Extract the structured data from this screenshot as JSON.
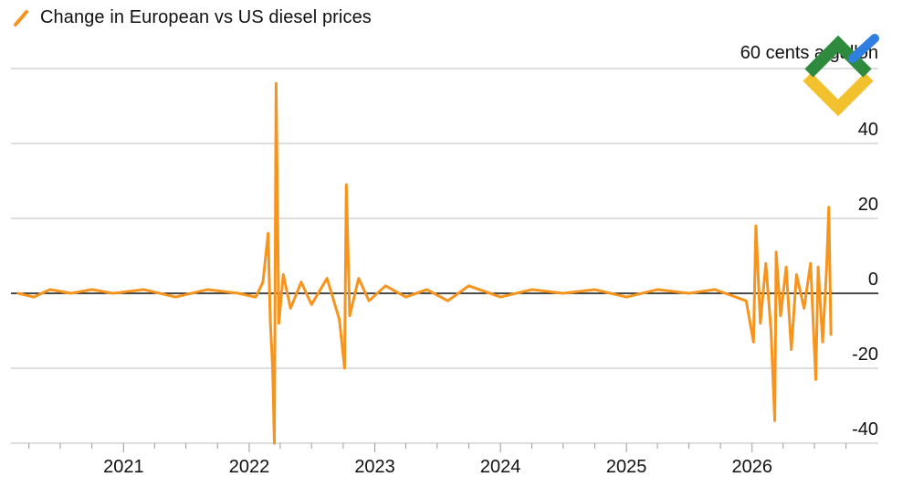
{
  "chart_data": {
    "type": "line",
    "title": "Change in European vs US diesel prices",
    "unit_label": "60 cents a gallon",
    "series": [
      {
        "name": "Change in European vs US diesel prices",
        "color": "#f7941d",
        "points": [
          [
            "2020-03-01",
            0
          ],
          [
            "2020-04-15",
            -1
          ],
          [
            "2020-06-01",
            1
          ],
          [
            "2020-08-01",
            0
          ],
          [
            "2020-10-01",
            1
          ],
          [
            "2020-12-01",
            0
          ],
          [
            "2021-03-01",
            1
          ],
          [
            "2021-06-01",
            -1
          ],
          [
            "2021-09-01",
            1
          ],
          [
            "2021-12-01",
            0
          ],
          [
            "2022-01-20",
            -1
          ],
          [
            "2022-02-10",
            3
          ],
          [
            "2022-02-25",
            16
          ],
          [
            "2022-03-03",
            -7
          ],
          [
            "2022-03-10",
            -20
          ],
          [
            "2022-03-15",
            -40
          ],
          [
            "2022-03-20",
            56
          ],
          [
            "2022-03-28",
            -8
          ],
          [
            "2022-04-10",
            5
          ],
          [
            "2022-05-01",
            -4
          ],
          [
            "2022-06-01",
            3
          ],
          [
            "2022-07-01",
            -3
          ],
          [
            "2022-08-15",
            4
          ],
          [
            "2022-09-20",
            -7
          ],
          [
            "2022-10-05",
            -20
          ],
          [
            "2022-10-10",
            29
          ],
          [
            "2022-10-20",
            -6
          ],
          [
            "2022-11-15",
            4
          ],
          [
            "2022-12-15",
            -2
          ],
          [
            "2023-02-01",
            2
          ],
          [
            "2023-04-01",
            -1
          ],
          [
            "2023-06-01",
            1
          ],
          [
            "2023-08-01",
            -2
          ],
          [
            "2023-10-01",
            2
          ],
          [
            "2024-01-01",
            -1
          ],
          [
            "2024-04-01",
            1
          ],
          [
            "2024-07-01",
            0
          ],
          [
            "2024-10-01",
            1
          ],
          [
            "2025-01-01",
            -1
          ],
          [
            "2025-04-01",
            1
          ],
          [
            "2025-07-01",
            0
          ],
          [
            "2025-09-15",
            1
          ],
          [
            "2025-12-15",
            -2
          ],
          [
            "2026-01-05",
            -13
          ],
          [
            "2026-01-12",
            18
          ],
          [
            "2026-01-25",
            -8
          ],
          [
            "2026-02-10",
            8
          ],
          [
            "2026-02-25",
            -10
          ],
          [
            "2026-03-08",
            -34
          ],
          [
            "2026-03-12",
            11
          ],
          [
            "2026-03-25",
            -6
          ],
          [
            "2026-04-10",
            7
          ],
          [
            "2026-04-25",
            -15
          ],
          [
            "2026-05-10",
            5
          ],
          [
            "2026-06-01",
            -4
          ],
          [
            "2026-06-20",
            8
          ],
          [
            "2026-07-05",
            -23
          ],
          [
            "2026-07-12",
            7
          ],
          [
            "2026-07-25",
            -13
          ],
          [
            "2026-08-05",
            6
          ],
          [
            "2026-08-12",
            23
          ],
          [
            "2026-08-18",
            -11
          ]
        ]
      }
    ],
    "x_ticks": [
      "2021",
      "2022",
      "2023",
      "2024",
      "2025",
      "2026"
    ],
    "y_ticks": [
      40,
      20,
      0,
      -20,
      -40
    ],
    "ylim": [
      -40,
      60
    ],
    "y_axis_side": "right",
    "grid": "horizontal"
  }
}
